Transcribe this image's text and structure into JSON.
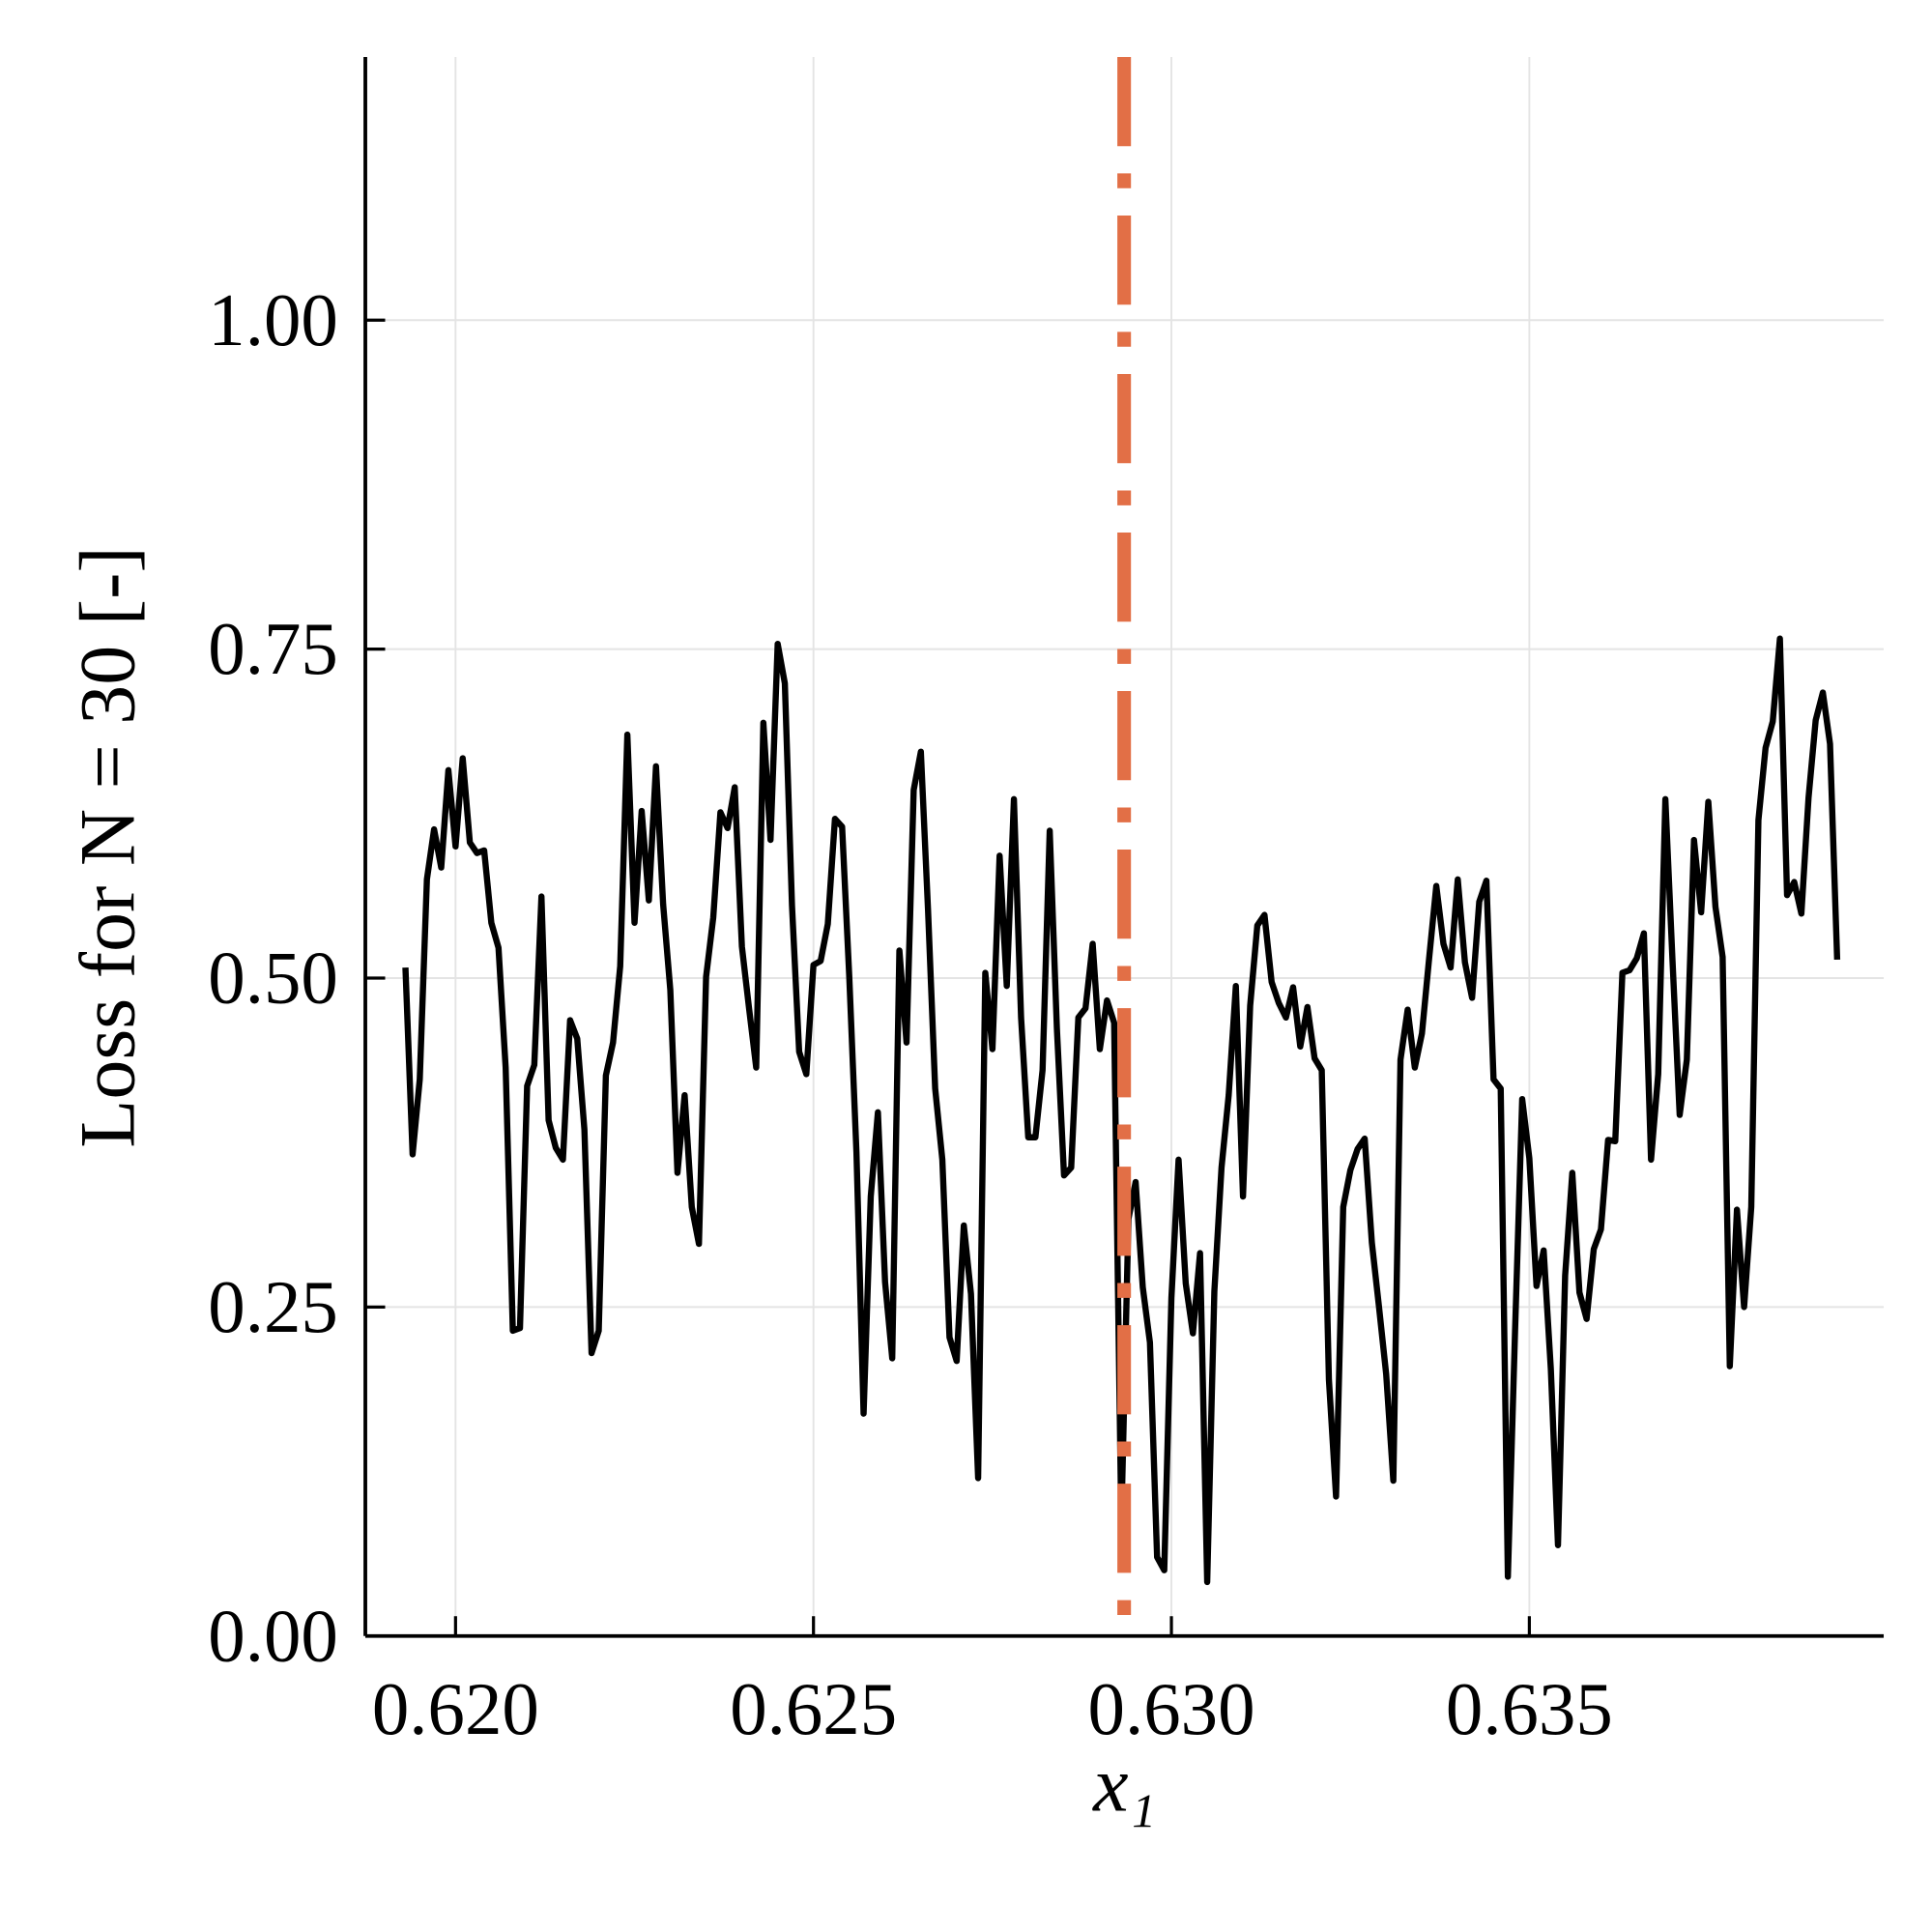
{
  "chart_data": {
    "type": "line",
    "xlabel": "x₁",
    "ylabel": "Loss for N = 30 [-]",
    "xlim": [
      0.61874,
      0.63995
    ],
    "ylim": [
      0,
      1.2
    ],
    "xticks": [
      {
        "value": 0.62,
        "label": "0.620"
      },
      0.625,
      {
        "value": 0.63,
        "label": "0.630"
      },
      0.635
    ],
    "yticks": [
      {
        "value": 0,
        "label": "0.00"
      },
      0.25,
      {
        "value": 0.5,
        "label": "0.50"
      },
      0.75,
      {
        "value": 1,
        "label": "1.00"
      }
    ],
    "grid": true,
    "vline": {
      "x": 0.62934,
      "color": "#e26f46"
    },
    "x": [
      0.6193,
      0.6194,
      0.6195,
      0.6196,
      0.6197,
      0.6198,
      0.6199,
      0.62,
      0.6201,
      0.6202,
      0.6203,
      0.6204,
      0.6205,
      0.6206,
      0.6207,
      0.6208,
      0.6209,
      0.621,
      0.6211,
      0.6212,
      0.6213,
      0.6214,
      0.6215,
      0.6216,
      0.6217,
      0.6218,
      0.6219,
      0.622,
      0.6221,
      0.6222,
      0.6223,
      0.6224,
      0.6225,
      0.6226,
      0.6227,
      0.6228,
      0.6229,
      0.623,
      0.6231,
      0.6232,
      0.6233,
      0.6234,
      0.6235,
      0.6236,
      0.6237,
      0.6238,
      0.6239,
      0.624,
      0.6241,
      0.6242,
      0.6243,
      0.6244,
      0.6245,
      0.6246,
      0.6247,
      0.6248,
      0.6249,
      0.625,
      0.6251,
      0.6252,
      0.6253,
      0.6254,
      0.6255,
      0.6256,
      0.6257,
      0.6258,
      0.6259,
      0.626,
      0.6261,
      0.6262,
      0.6263,
      0.6264,
      0.6265,
      0.6266,
      0.6267,
      0.6268,
      0.6269,
      0.627,
      0.6271,
      0.6272,
      0.6273,
      0.6274,
      0.6275,
      0.6276,
      0.6277,
      0.6278,
      0.6279,
      0.628,
      0.6281,
      0.6282,
      0.6283,
      0.6284,
      0.6285,
      0.6286,
      0.6287,
      0.6288,
      0.6289,
      0.629,
      0.6291,
      0.6292,
      0.6293,
      0.6294,
      0.6295,
      0.6296,
      0.6297,
      0.6298,
      0.6299,
      0.63,
      0.6301,
      0.6302,
      0.6303,
      0.6304,
      0.6305,
      0.6306,
      0.6307,
      0.6308,
      0.6309,
      0.631,
      0.6311,
      0.6312,
      0.6313,
      0.6314,
      0.6315,
      0.6316,
      0.6317,
      0.6318,
      0.6319,
      0.632,
      0.6321,
      0.6322,
      0.6323,
      0.6324,
      0.6325,
      0.6326,
      0.6327,
      0.6328,
      0.6329,
      0.633,
      0.6331,
      0.6332,
      0.6333,
      0.6334,
      0.6335,
      0.6336,
      0.6337,
      0.6338,
      0.6339,
      0.634,
      0.6341,
      0.6342,
      0.6343,
      0.6344,
      0.6345,
      0.6346,
      0.6347,
      0.6348,
      0.6349,
      0.635,
      0.6351,
      0.6352,
      0.6353,
      0.6354,
      0.6355,
      0.6356,
      0.6357,
      0.6358,
      0.6359,
      0.636,
      0.6361,
      0.6362,
      0.6363,
      0.6364,
      0.6365,
      0.6366,
      0.6367,
      0.6368,
      0.6369,
      0.637,
      0.6371,
      0.6372,
      0.6373,
      0.6374,
      0.6375,
      0.6376,
      0.6377,
      0.6378,
      0.6379,
      0.638,
      0.6381,
      0.6382,
      0.6383,
      0.6384,
      0.6385,
      0.6386,
      0.6387,
      0.6388,
      0.6389,
      0.639,
      0.6391,
      0.6392,
      0.6393
    ],
    "series": [
      {
        "color": "#000000",
        "values": [
          0.508,
          0.366,
          0.423,
          0.575,
          0.613,
          0.584,
          0.658,
          0.6,
          0.667,
          0.603,
          0.595,
          0.597,
          0.542,
          0.523,
          0.432,
          0.232,
          0.234,
          0.418,
          0.434,
          0.562,
          0.392,
          0.371,
          0.362,
          0.468,
          0.454,
          0.385,
          0.215,
          0.232,
          0.426,
          0.451,
          0.509,
          0.685,
          0.542,
          0.627,
          0.559,
          0.661,
          0.556,
          0.491,
          0.352,
          0.411,
          0.326,
          0.298,
          0.501,
          0.546,
          0.626,
          0.614,
          0.645,
          0.524,
          0.477,
          0.432,
          0.694,
          0.605,
          0.754,
          0.724,
          0.555,
          0.444,
          0.427,
          0.51,
          0.513,
          0.541,
          0.621,
          0.615,
          0.501,
          0.368,
          0.169,
          0.334,
          0.398,
          0.269,
          0.211,
          0.521,
          0.451,
          0.643,
          0.672,
          0.552,
          0.416,
          0.362,
          0.227,
          0.209,
          0.312,
          0.26,
          0.12,
          0.504,
          0.446,
          0.593,
          0.494,
          0.636,
          0.47,
          0.379,
          0.379,
          0.43,
          0.612,
          0.462,
          0.35,
          0.356,
          0.47,
          0.477,
          0.526,
          0.446,
          0.483,
          0.466,
          0.086,
          0.317,
          0.345,
          0.265,
          0.223,
          0.06,
          0.05,
          0.257,
          0.362,
          0.268,
          0.23,
          0.291,
          0.041,
          0.262,
          0.356,
          0.411,
          0.494,
          0.334,
          0.479,
          0.54,
          0.548,
          0.497,
          0.481,
          0.47,
          0.493,
          0.448,
          0.478,
          0.439,
          0.43,
          0.195,
          0.106,
          0.326,
          0.354,
          0.37,
          0.378,
          0.299,
          0.25,
          0.199,
          0.118,
          0.438,
          0.476,
          0.432,
          0.458,
          0.515,
          0.57,
          0.526,
          0.508,
          0.575,
          0.512,
          0.485,
          0.558,
          0.574,
          0.423,
          0.416,
          0.045,
          0.231,
          0.408,
          0.363,
          0.266,
          0.293,
          0.203,
          0.069,
          0.274,
          0.352,
          0.261,
          0.241,
          0.294,
          0.309,
          0.377,
          0.376,
          0.504,
          0.506,
          0.515,
          0.534,
          0.362,
          0.427,
          0.636,
          0.513,
          0.396,
          0.438,
          0.605,
          0.55,
          0.634,
          0.554,
          0.516,
          0.205,
          0.324,
          0.25,
          0.326,
          0.62,
          0.675,
          0.695,
          0.758,
          0.563,
          0.573,
          0.549,
          0.637,
          0.696,
          0.717,
          0.678,
          0.514
        ]
      }
    ]
  }
}
